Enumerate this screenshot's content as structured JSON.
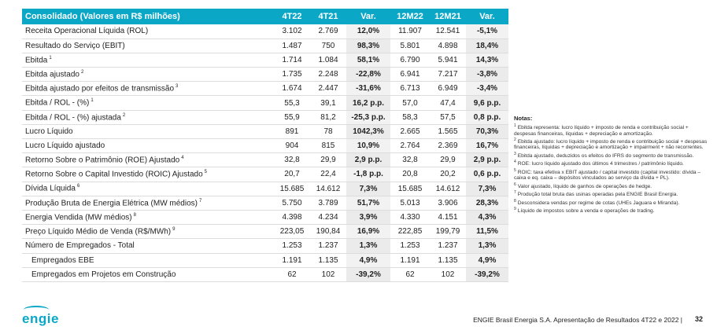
{
  "table": {
    "headers": [
      "Consolidado (Valores em R$ milhões)",
      "4T22",
      "4T21",
      "Var.",
      "12M22",
      "12M21",
      "Var."
    ],
    "rows": [
      {
        "label": "Receita Operacional Líquida (ROL)",
        "sup": "",
        "v": [
          "3.102",
          "2.769",
          "12,0%",
          "11.907",
          "12.541",
          "-5,1%"
        ]
      },
      {
        "label": "Resultado do Serviço (EBIT)",
        "sup": "",
        "v": [
          "1.487",
          "750",
          "98,3%",
          "5.801",
          "4.898",
          "18,4%"
        ]
      },
      {
        "label": "Ebitda",
        "sup": "1",
        "v": [
          "1.714",
          "1.084",
          "58,1%",
          "6.790",
          "5.941",
          "14,3%"
        ]
      },
      {
        "label": "Ebitda ajustado",
        "sup": "2",
        "v": [
          "1.735",
          "2.248",
          "-22,8%",
          "6.941",
          "7.217",
          "-3,8%"
        ]
      },
      {
        "label": "Ebitda ajustado por efeitos de transmissão",
        "sup": "3",
        "v": [
          "1.674",
          "2.447",
          "-31,6%",
          "6.713",
          "6.949",
          "-3,4%"
        ]
      },
      {
        "label": "Ebitda / ROL - (%)",
        "sup": "1",
        "v": [
          "55,3",
          "39,1",
          "16,2 p.p.",
          "57,0",
          "47,4",
          "9,6 p.p."
        ]
      },
      {
        "label": "Ebitda / ROL - (%) ajustada",
        "sup": "2",
        "v": [
          "55,9",
          "81,2",
          "-25,3 p.p.",
          "58,3",
          "57,5",
          "0,8 p.p."
        ]
      },
      {
        "label": "Lucro Líquido",
        "sup": "",
        "v": [
          "891",
          "78",
          "1042,3%",
          "2.665",
          "1.565",
          "70,3%"
        ]
      },
      {
        "label": "Lucro Líquido ajustado",
        "sup": "",
        "v": [
          "904",
          "815",
          "10,9%",
          "2.764",
          "2.369",
          "16,7%"
        ]
      },
      {
        "label": "Retorno Sobre o Patrimônio (ROE) Ajustado",
        "sup": "4",
        "v": [
          "32,8",
          "29,9",
          "2,9 p.p.",
          "32,8",
          "29,9",
          "2,9 p.p."
        ]
      },
      {
        "label": "Retorno Sobre o Capital Investido (ROIC) Ajustado",
        "sup": "5",
        "v": [
          "20,7",
          "22,4",
          "-1,8 p.p.",
          "20,8",
          "20,2",
          "0,6 p.p."
        ]
      },
      {
        "label": "Dívida Líquida",
        "sup": "6",
        "v": [
          "15.685",
          "14.612",
          "7,3%",
          "15.685",
          "14.612",
          "7,3%"
        ]
      },
      {
        "label": "Produção Bruta de Energia Elétrica (MW médios)",
        "sup": "7",
        "v": [
          "5.750",
          "3.789",
          "51,7%",
          "5.013",
          "3.906",
          "28,3%"
        ]
      },
      {
        "label": "Energia Vendida (MW médios)",
        "sup": "8",
        "v": [
          "4.398",
          "4.234",
          "3,9%",
          "4.330",
          "4.151",
          "4,3%"
        ]
      },
      {
        "label": "Preço Líquido Médio de Venda (R$/MWh)",
        "sup": "9",
        "v": [
          "223,05",
          "190,84",
          "16,9%",
          "222,85",
          "199,79",
          "11,5%"
        ]
      },
      {
        "label": "Número de Empregados - Total",
        "sup": "",
        "v": [
          "1.253",
          "1.237",
          "1,3%",
          "1.253",
          "1.237",
          "1,3%"
        ]
      },
      {
        "label": "Empregados EBE",
        "sup": "",
        "indent": true,
        "v": [
          "1.191",
          "1.135",
          "4,9%",
          "1.191",
          "1.135",
          "4,9%"
        ]
      },
      {
        "label": "Empregados em Projetos em Construção",
        "sup": "",
        "indent": true,
        "v": [
          "62",
          "102",
          "-39,2%",
          "62",
          "102",
          "-39,2%"
        ]
      }
    ]
  },
  "notes": {
    "title": "Notas:",
    "items": [
      {
        "n": "1",
        "text": "Ebitda representa: lucro líquido + imposto de renda e contribuição social + despesas financeiras, líquidas + depreciação e amortização."
      },
      {
        "n": "2",
        "text": "Ebitda ajustado: lucro líquido + imposto de renda e contribuição social + despesas financeiras, líquidas + depreciação e amortização + impairment + não recorrentes."
      },
      {
        "n": "3",
        "text": "Ebitda ajustado, deduzidos os efeitos do IFRS do segmento de transmissão."
      },
      {
        "n": "4",
        "text": "ROE: lucro líquido ajustado dos últimos 4 trimestres / patrimônio líquido."
      },
      {
        "n": "5",
        "text": "ROIC: taxa efetiva x EBIT ajustado / capital investido (capital investido: dívida – caixa e eq. caixa – depósitos vinculados ao serviço da dívida + PL)."
      },
      {
        "n": "6",
        "text": "Valor ajustado, líquido de ganhos de operações de hedge."
      },
      {
        "n": "7",
        "text": "Produção total bruta das usinas operadas pela ENGIE Brasil Energia."
      },
      {
        "n": "8",
        "text": "Desconsidera vendas por regime de cotas (UHEs Jaguara e Miranda)."
      },
      {
        "n": "9",
        "text": "Líquido de impostos sobre a venda e operações de trading."
      }
    ]
  },
  "footer": {
    "logo": "engie",
    "text": "ENGIE Brasil Energia S.A. Apresentação de Resultados 4T22 e 2022  |",
    "page": "32"
  },
  "colors": {
    "accent": "#0aa7c7"
  }
}
